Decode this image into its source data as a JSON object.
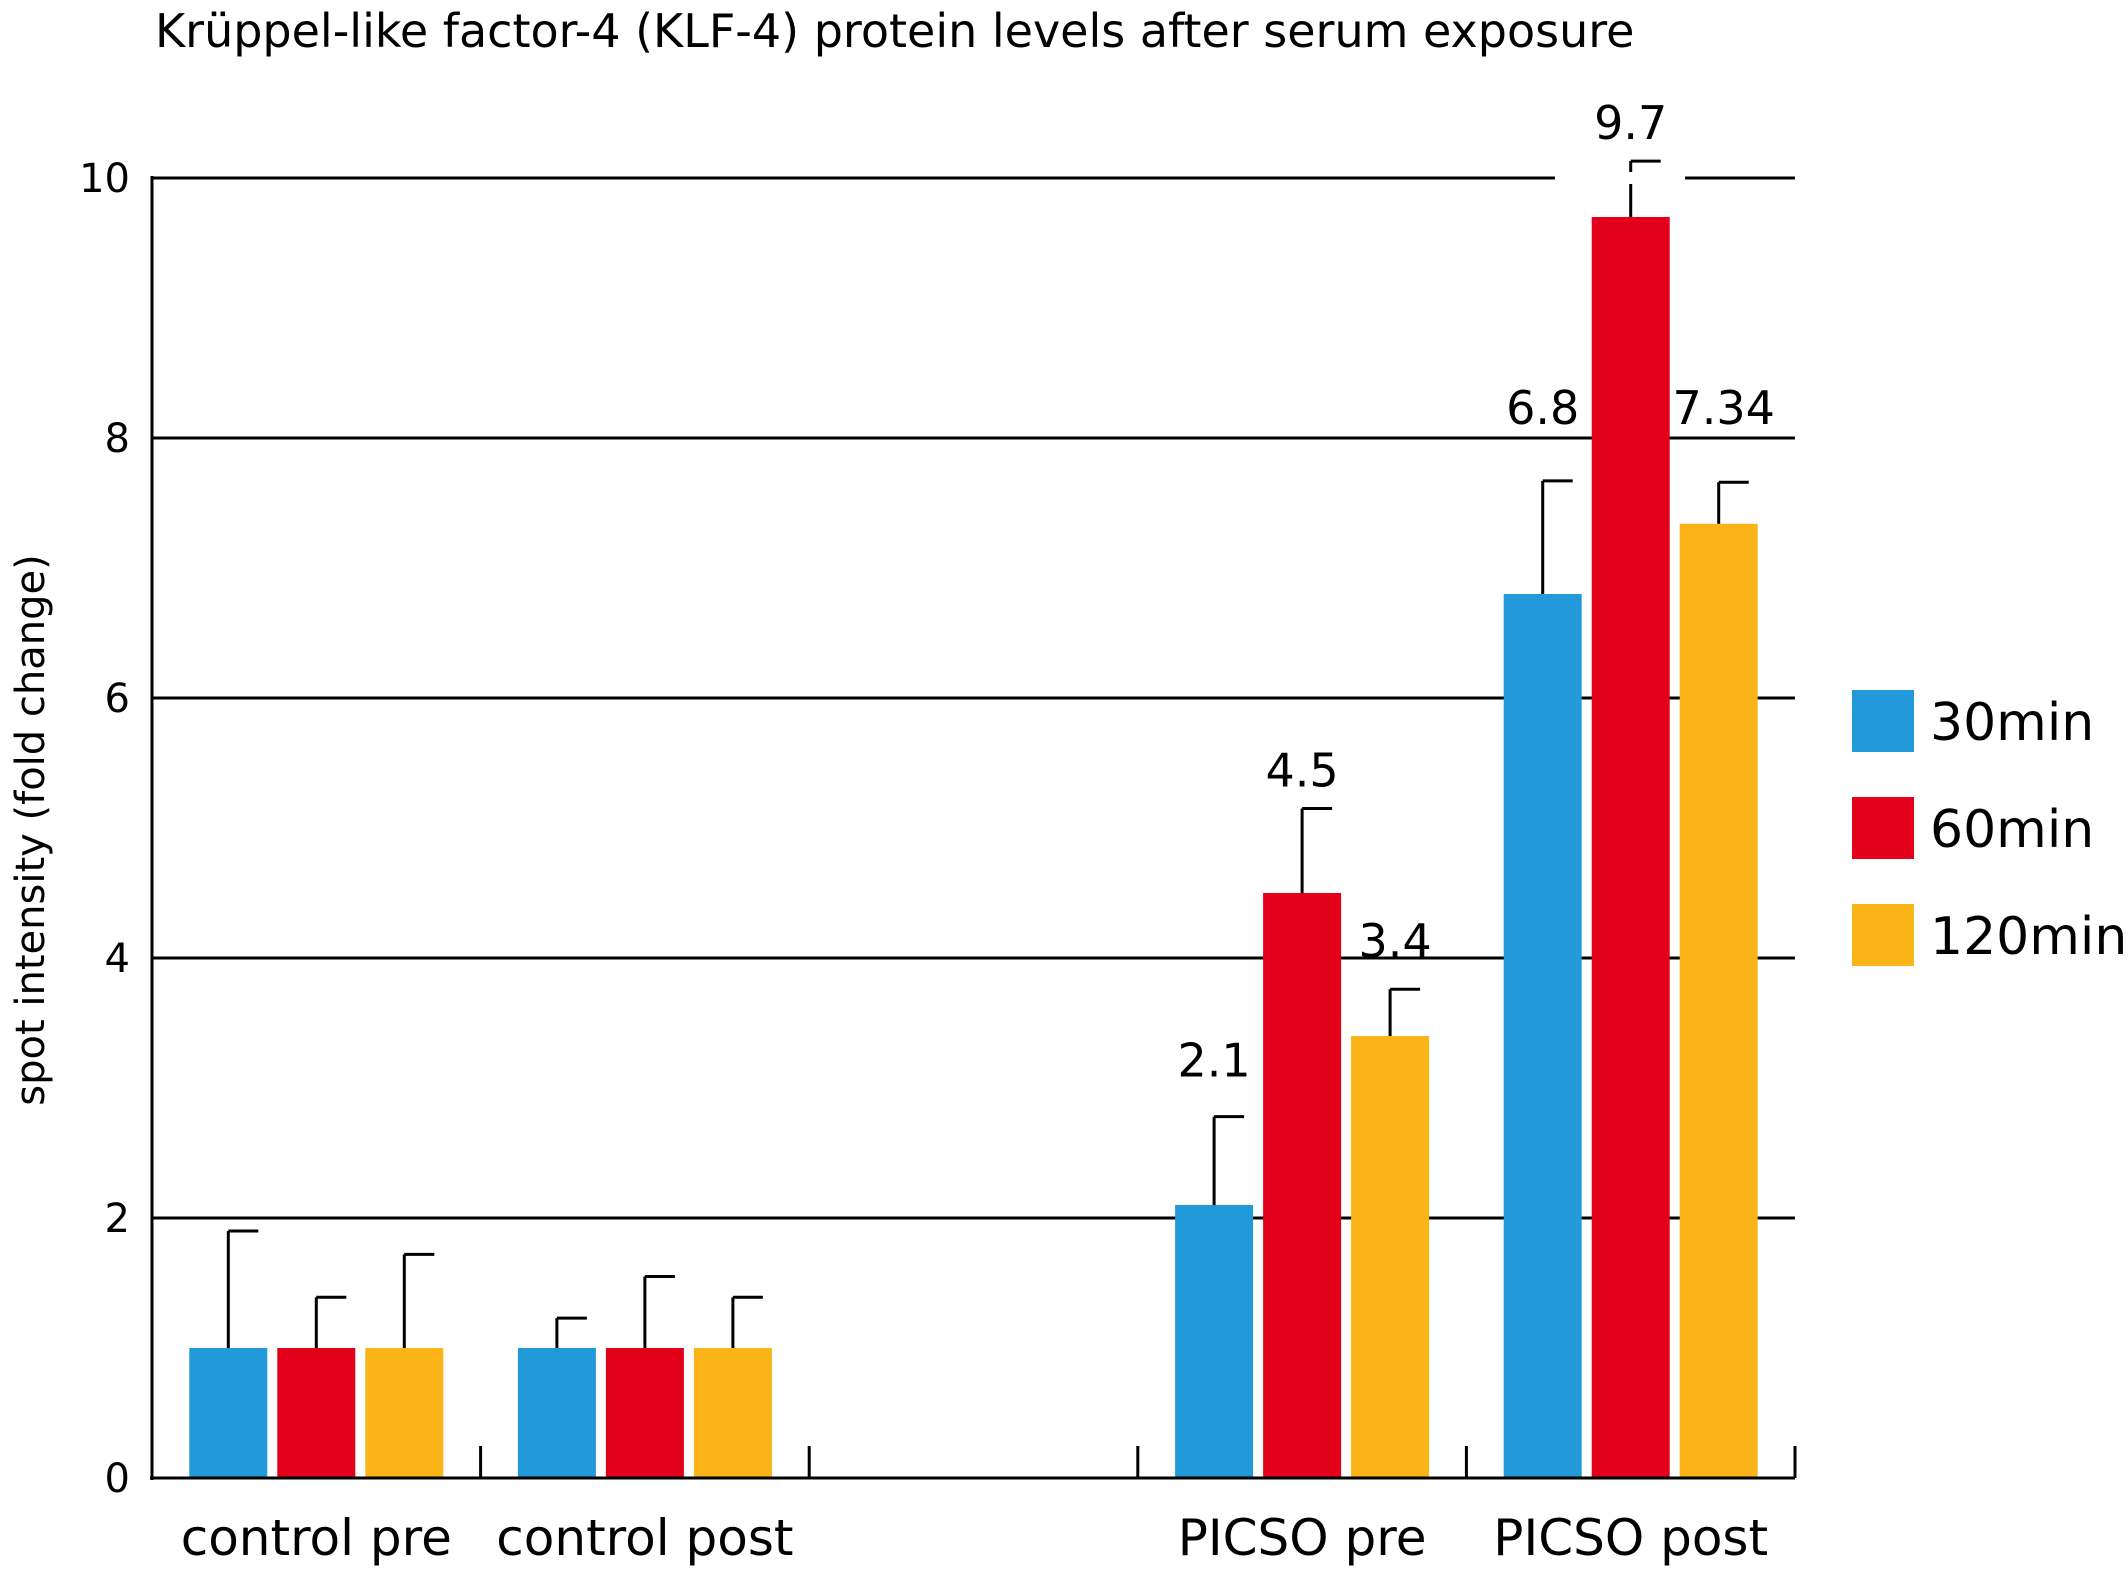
{
  "chart_data": {
    "type": "bar",
    "title": "Krüppel-like factor-4 (KLF-4) protein levels after serum exposure",
    "xlabel": "",
    "ylabel": "spot intensity (fold change)",
    "ylim": [
      0,
      10
    ],
    "yticks": [
      "0",
      "2",
      "4",
      "6",
      "8",
      "10"
    ],
    "grid": true,
    "legend_position": "right",
    "categories": [
      "control pre",
      "control post",
      "",
      "PICSO pre",
      "PICSO post"
    ],
    "series": [
      {
        "name": "30min",
        "color": "#2299d9",
        "values": [
          1.0,
          1.0,
          null,
          2.1,
          6.8
        ],
        "errors": [
          0.9,
          0.23,
          null,
          0.68,
          0.87
        ],
        "labels": [
          "",
          "",
          "",
          "2.1",
          "6.8"
        ]
      },
      {
        "name": "60min",
        "color": "#e2001a",
        "values": [
          1.0,
          1.0,
          null,
          4.5,
          9.7
        ],
        "errors": [
          0.39,
          0.55,
          null,
          0.65,
          0.43
        ],
        "labels": [
          "",
          "",
          "",
          "4.5",
          "9.7"
        ]
      },
      {
        "name": "120min",
        "color": "#fab417",
        "values": [
          1.0,
          1.0,
          null,
          3.4,
          7.34
        ],
        "errors": [
          0.72,
          0.39,
          null,
          0.36,
          0.32
        ],
        "labels": [
          "",
          "",
          "",
          "3.4",
          "7.34"
        ]
      }
    ]
  }
}
